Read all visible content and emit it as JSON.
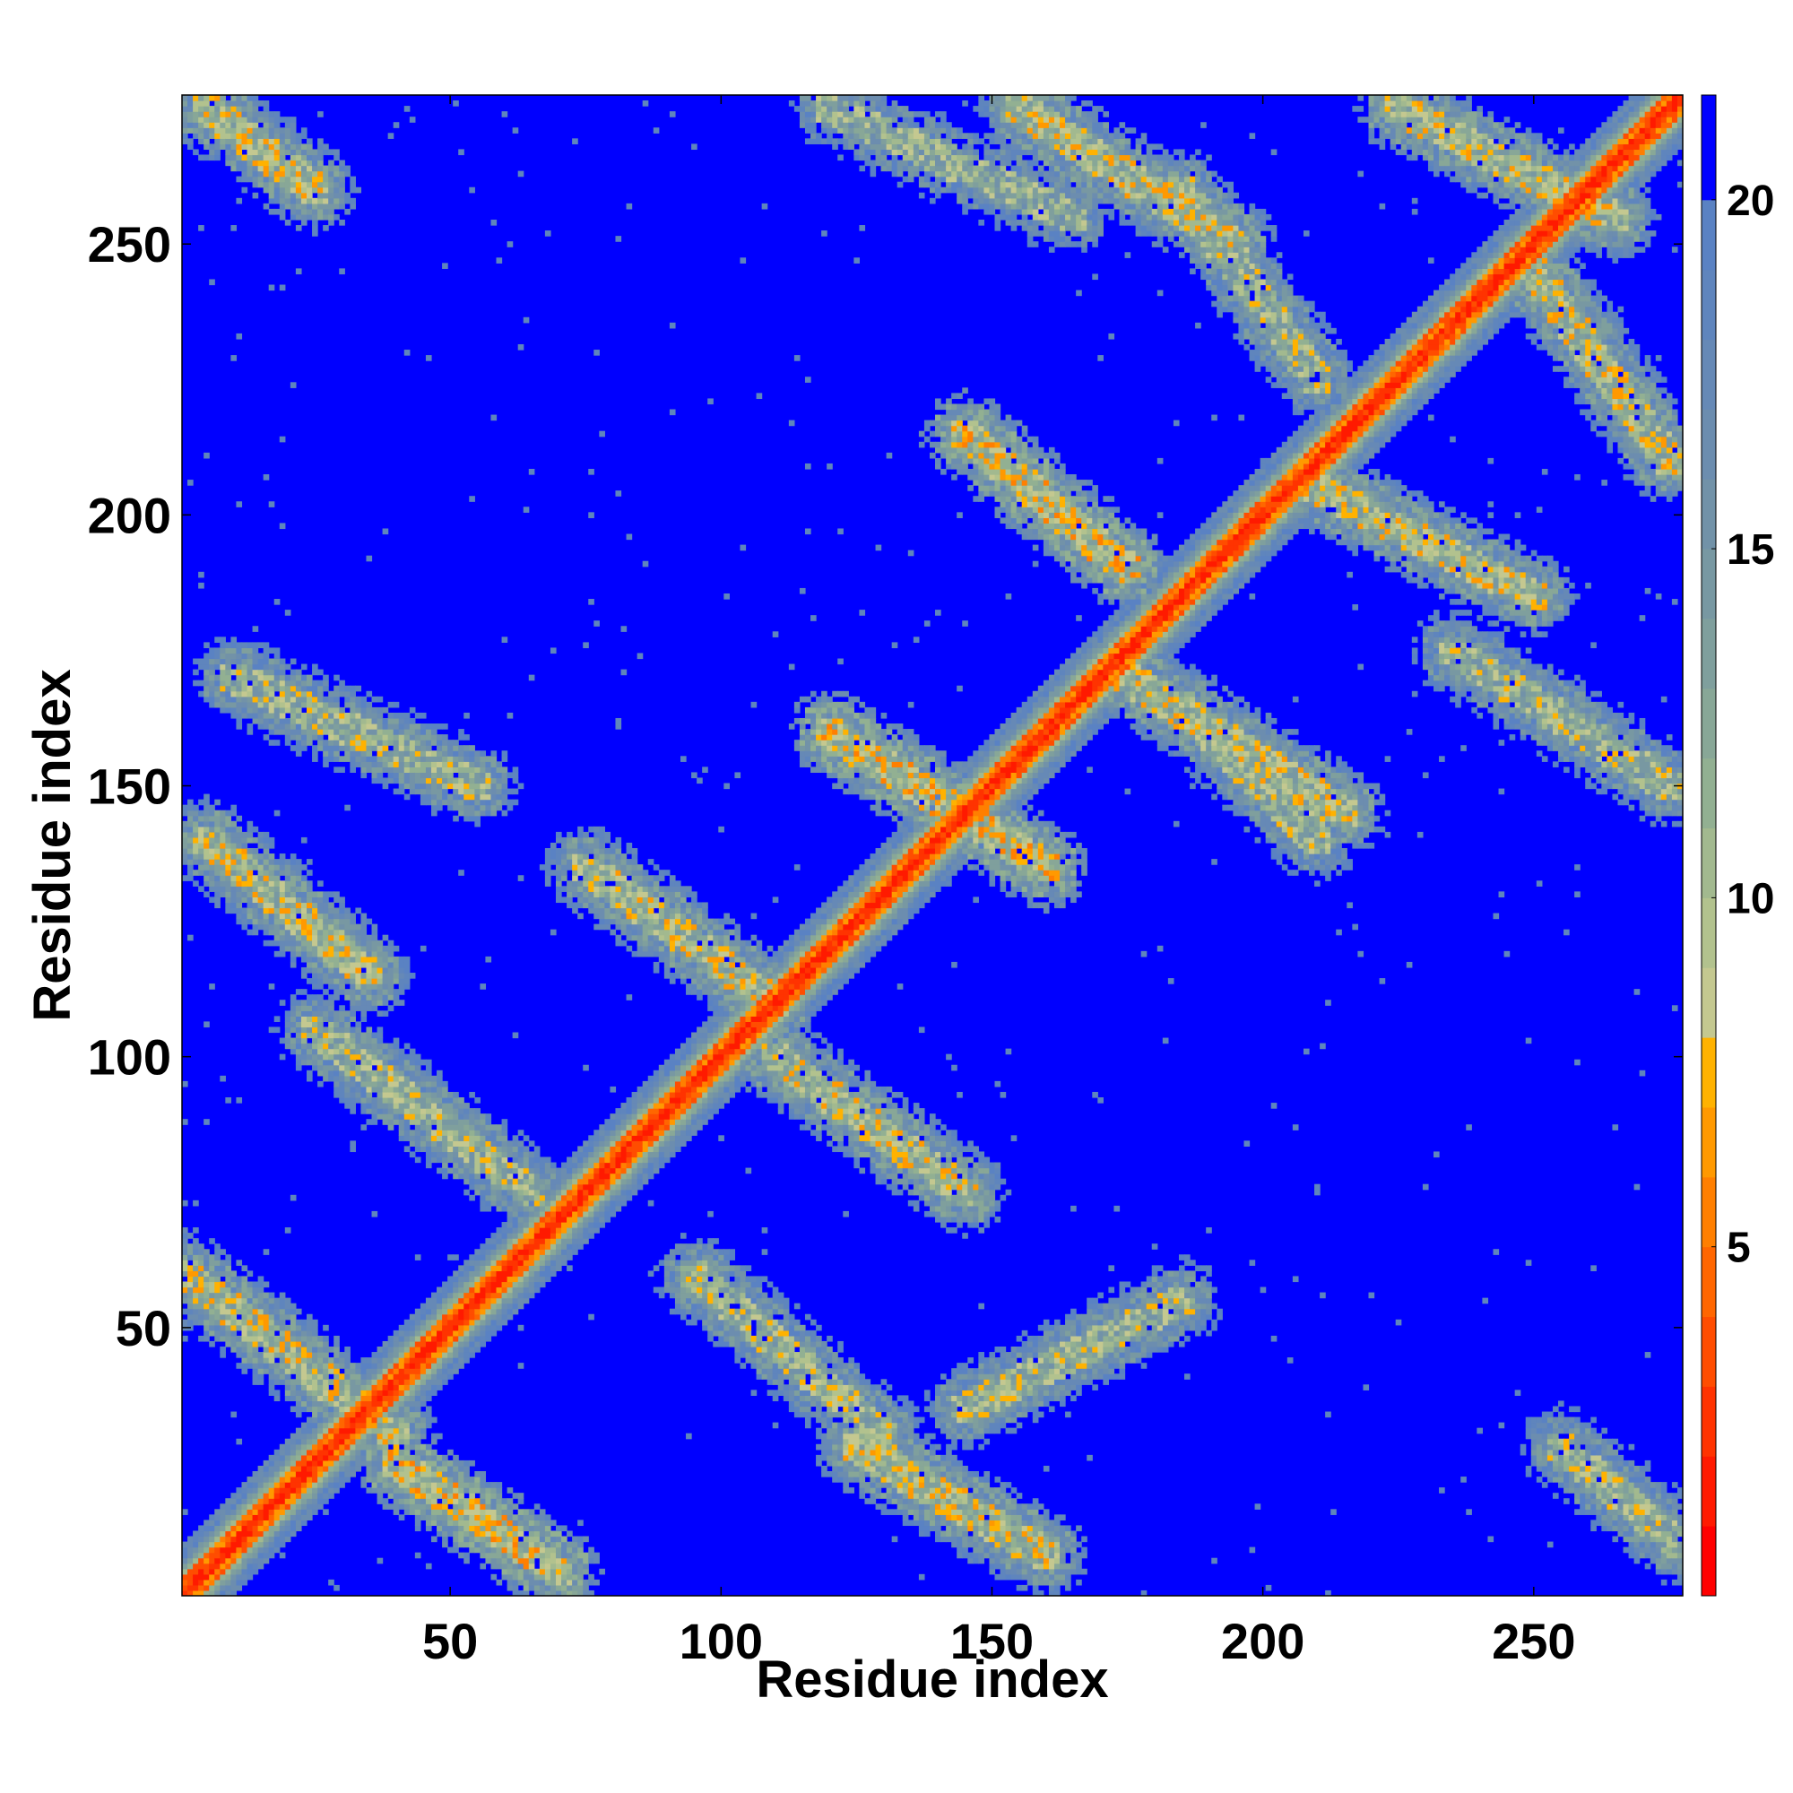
{
  "chart_data": {
    "type": "heatmap",
    "title": "",
    "xlabel": "Residue index",
    "ylabel": "Residue index",
    "n_residues": 277,
    "xlim": [
      1,
      277
    ],
    "ylim": [
      1,
      277
    ],
    "x_ticks": [
      50,
      100,
      150,
      200,
      250
    ],
    "y_ticks": [
      50,
      100,
      150,
      200,
      250
    ],
    "grid": false,
    "legend": "colorbar-right",
    "colorbar": {
      "range": [
        0,
        21.5
      ],
      "ticks": [
        5,
        10,
        15,
        20
      ],
      "levels": [
        {
          "max": 1,
          "color": "#ff0000"
        },
        {
          "max": 2,
          "color": "#ff1a00"
        },
        {
          "max": 3,
          "color": "#ff3300"
        },
        {
          "max": 4,
          "color": "#ff4d00"
        },
        {
          "max": 5,
          "color": "#ff6600"
        },
        {
          "max": 6,
          "color": "#ff7f00"
        },
        {
          "max": 7,
          "color": "#ff9900"
        },
        {
          "max": 8,
          "color": "#ffb200"
        },
        {
          "max": 9,
          "color": "#c4c890"
        },
        {
          "max": 10,
          "color": "#b2c28e"
        },
        {
          "max": 11,
          "color": "#a2b98f"
        },
        {
          "max": 12,
          "color": "#92b092"
        },
        {
          "max": 13,
          "color": "#88a797"
        },
        {
          "max": 14,
          "color": "#7f9f9d"
        },
        {
          "max": 15,
          "color": "#7898a2"
        },
        {
          "max": 16,
          "color": "#7292a8"
        },
        {
          "max": 17,
          "color": "#6c8daf"
        },
        {
          "max": 18,
          "color": "#6689b6"
        },
        {
          "max": 19,
          "color": "#5f85bd"
        },
        {
          "max": 20,
          "color": "#5a82c3"
        },
        {
          "max": 21.5,
          "color": "#0000ff"
        }
      ]
    },
    "diagonal_band": {
      "core_width": 2.5,
      "halo_width": 6
    },
    "contact_bands": [
      {
        "orientation": "anti",
        "i_range": [
          1,
          40
        ],
        "j_range": [
          60,
          30
        ],
        "mean_distance": 9
      },
      {
        "orientation": "anti",
        "i_range": [
          40,
          70
        ],
        "j_range": [
          25,
          5
        ],
        "mean_distance": 8
      },
      {
        "orientation": "anti",
        "i_range": [
          25,
          65
        ],
        "j_range": [
          105,
          75
        ],
        "mean_distance": 10
      },
      {
        "orientation": "anti",
        "i_range": [
          5,
          35
        ],
        "j_range": [
          140,
          115
        ],
        "mean_distance": 9
      },
      {
        "orientation": "anti",
        "i_range": [
          10,
          55
        ],
        "j_range": [
          170,
          150
        ],
        "mean_distance": 10
      },
      {
        "orientation": "anti",
        "i_range": [
          75,
          110
        ],
        "j_range": [
          135,
          110
        ],
        "mean_distance": 9
      },
      {
        "orientation": "anti",
        "i_range": [
          110,
          145
        ],
        "j_range": [
          100,
          75
        ],
        "mean_distance": 9
      },
      {
        "orientation": "anti",
        "i_range": [
          95,
          130
        ],
        "j_range": [
          60,
          30
        ],
        "mean_distance": 10
      },
      {
        "orientation": "anti",
        "i_range": [
          125,
          160
        ],
        "j_range": [
          28,
          8
        ],
        "mean_distance": 9
      },
      {
        "orientation": "anti",
        "i_range": [
          145,
          185
        ],
        "j_range": [
          35,
          55
        ],
        "mean_distance": 10
      },
      {
        "orientation": "anti",
        "i_range": [
          120,
          160
        ],
        "j_range": [
          160,
          135
        ],
        "mean_distance": 8
      },
      {
        "orientation": "anti",
        "i_range": [
          145,
          175
        ],
        "j_range": [
          215,
          190
        ],
        "mean_distance": 8
      },
      {
        "orientation": "anti",
        "i_range": [
          175,
          215
        ],
        "j_range": [
          170,
          145
        ],
        "mean_distance": 9
      },
      {
        "orientation": "anti",
        "i_range": [
          155,
          195
        ],
        "j_range": [
          275,
          250
        ],
        "mean_distance": 9
      },
      {
        "orientation": "anti",
        "i_range": [
          185,
          210
        ],
        "j_range": [
          260,
          225
        ],
        "mean_distance": 10
      },
      {
        "orientation": "anti",
        "i_range": [
          210,
          250
        ],
        "j_range": [
          205,
          185
        ],
        "mean_distance": 9
      },
      {
        "orientation": "anti",
        "i_range": [
          250,
          275
        ],
        "j_range": [
          245,
          210
        ],
        "mean_distance": 9
      },
      {
        "orientation": "anti",
        "i_range": [
          225,
          265
        ],
        "j_range": [
          275,
          255
        ],
        "mean_distance": 9
      },
      {
        "orientation": "anti",
        "i_range": [
          235,
          275
        ],
        "j_range": [
          175,
          150
        ],
        "mean_distance": 10
      },
      {
        "orientation": "anti",
        "i_range": [
          255,
          277
        ],
        "j_range": [
          28,
          10
        ],
        "mean_distance": 10
      },
      {
        "orientation": "anti",
        "i_range": [
          5,
          25
        ],
        "j_range": [
          275,
          260
        ],
        "mean_distance": 9
      },
      {
        "orientation": "anti",
        "i_range": [
          185,
          210
        ],
        "j_range": [
          165,
          140
        ],
        "mean_distance": 10
      },
      {
        "orientation": "anti",
        "i_range": [
          120,
          165
        ],
        "j_range": [
          275,
          255
        ],
        "mean_distance": 11
      }
    ]
  }
}
